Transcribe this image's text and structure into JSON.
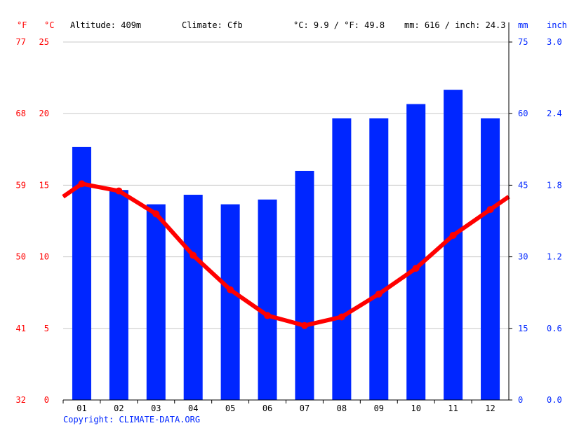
{
  "chart_data": {
    "type": "bar+line",
    "header": {
      "unit_f": "°F",
      "unit_c": "°C",
      "altitude": "Altitude: 409m",
      "climate": "Climate: Cfb",
      "temp_avg": "°C: 9.9 / °F: 49.8",
      "precip_total": "mm: 616 / inch: 24.3",
      "unit_mm": "mm",
      "unit_inch": "inch"
    },
    "categories": [
      "01",
      "02",
      "03",
      "04",
      "05",
      "06",
      "07",
      "08",
      "09",
      "10",
      "11",
      "12"
    ],
    "series": [
      {
        "type": "bar",
        "axis": "right",
        "unit": "mm",
        "color": "#0026ff",
        "values": [
          53,
          44,
          41,
          43,
          41,
          42,
          48,
          59,
          59,
          62,
          65,
          59
        ]
      },
      {
        "type": "line",
        "axis": "left",
        "unit": "°C",
        "color": "#ff0000",
        "values": [
          15.1,
          14.6,
          13.0,
          10.1,
          7.7,
          5.9,
          5.2,
          5.8,
          7.4,
          9.2,
          11.5,
          13.3
        ]
      }
    ],
    "y_left_c": {
      "ylim": [
        0,
        25
      ],
      "ticks": [
        "0",
        "5",
        "10",
        "15",
        "20",
        "25"
      ],
      "color": "#ff0000"
    },
    "y_left_f": {
      "ticks": [
        "32",
        "41",
        "50",
        "59",
        "68",
        "77"
      ],
      "color": "#ff0000"
    },
    "y_right_mm": {
      "ylim": [
        0,
        75
      ],
      "ticks": [
        "0",
        "15",
        "30",
        "45",
        "60",
        "75"
      ],
      "color": "#0026ff"
    },
    "y_right_inch": {
      "ticks": [
        "0.0",
        "0.6",
        "1.2",
        "1.8",
        "2.4",
        "3.0"
      ],
      "color": "#0026ff"
    },
    "grid": true,
    "copyright": "Copyright: CLIMATE-DATA.ORG"
  }
}
